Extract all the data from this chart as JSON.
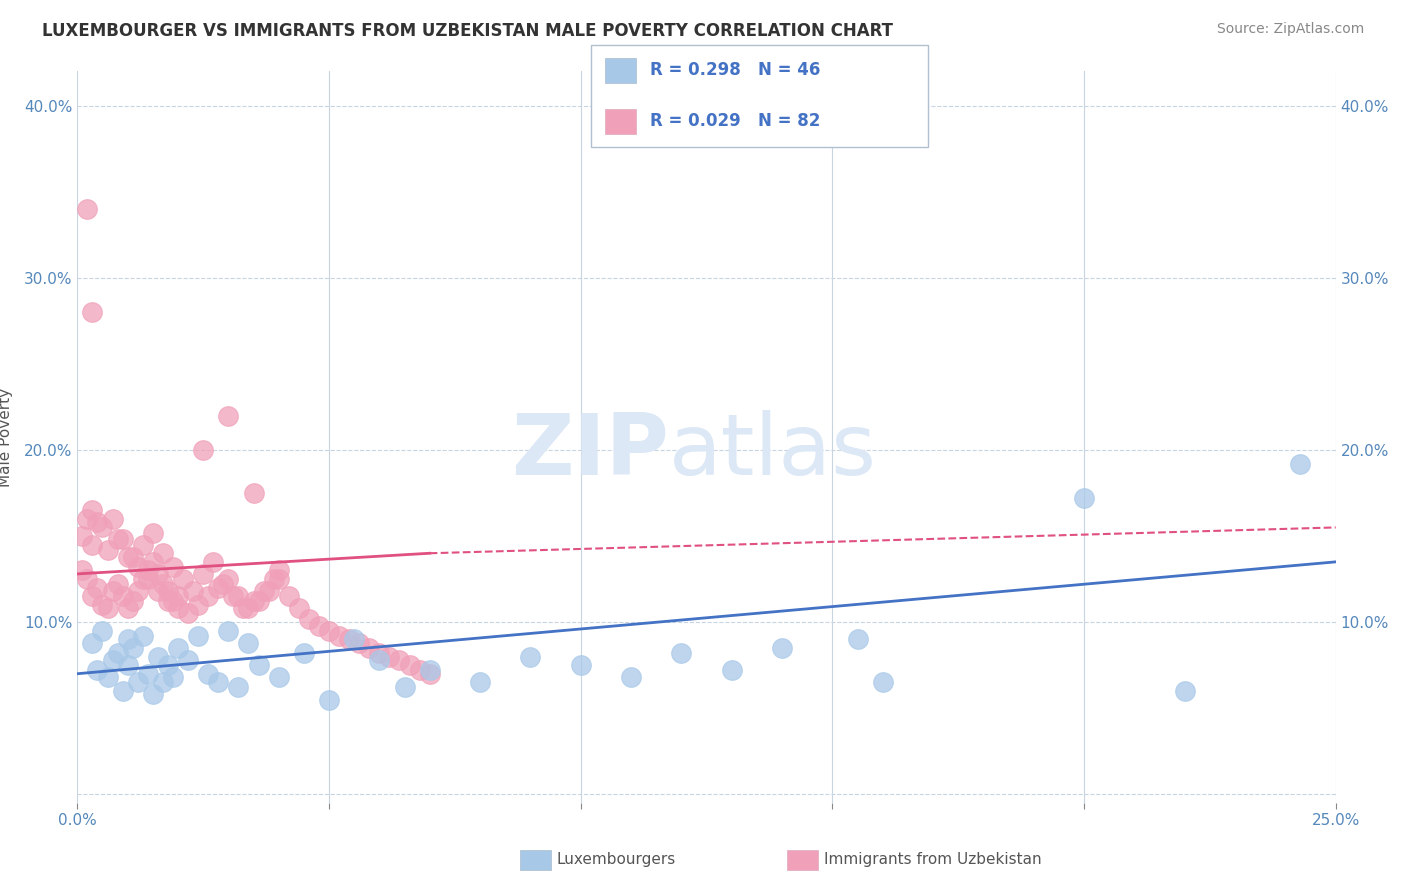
{
  "title": "LUXEMBOURGER VS IMMIGRANTS FROM UZBEKISTAN MALE POVERTY CORRELATION CHART",
  "source": "Source: ZipAtlas.com",
  "ylabel": "Male Poverty",
  "xlim": [
    0.0,
    0.25
  ],
  "ylim": [
    -0.005,
    0.42
  ],
  "xticks": [
    0.0,
    0.05,
    0.1,
    0.15,
    0.2,
    0.25
  ],
  "yticks": [
    0.0,
    0.1,
    0.2,
    0.3,
    0.4
  ],
  "blue_R": 0.298,
  "blue_N": 46,
  "pink_R": 0.029,
  "pink_N": 82,
  "blue_color": "#a8c8e8",
  "pink_color": "#f0a0b8",
  "blue_line_color": "#4472c4",
  "pink_line_color": "#e05080",
  "watermark_color": "#dce8f5",
  "background_color": "#ffffff",
  "grid_color": "#c8d4e0",
  "blue_scatter_x": [
    0.003,
    0.004,
    0.005,
    0.006,
    0.007,
    0.008,
    0.009,
    0.01,
    0.01,
    0.011,
    0.012,
    0.013,
    0.014,
    0.015,
    0.016,
    0.017,
    0.018,
    0.019,
    0.02,
    0.022,
    0.024,
    0.026,
    0.028,
    0.03,
    0.032,
    0.034,
    0.036,
    0.04,
    0.045,
    0.05,
    0.055,
    0.06,
    0.065,
    0.07,
    0.08,
    0.09,
    0.1,
    0.11,
    0.12,
    0.13,
    0.14,
    0.155,
    0.16,
    0.2,
    0.22,
    0.243
  ],
  "blue_scatter_y": [
    0.088,
    0.072,
    0.095,
    0.068,
    0.078,
    0.082,
    0.06,
    0.09,
    0.075,
    0.085,
    0.065,
    0.092,
    0.07,
    0.058,
    0.08,
    0.065,
    0.075,
    0.068,
    0.085,
    0.078,
    0.092,
    0.07,
    0.065,
    0.095,
    0.062,
    0.088,
    0.075,
    0.068,
    0.082,
    0.055,
    0.09,
    0.078,
    0.062,
    0.072,
    0.065,
    0.08,
    0.075,
    0.068,
    0.082,
    0.072,
    0.085,
    0.09,
    0.065,
    0.172,
    0.06,
    0.192
  ],
  "pink_scatter_x": [
    0.001,
    0.002,
    0.003,
    0.004,
    0.005,
    0.006,
    0.007,
    0.008,
    0.009,
    0.01,
    0.011,
    0.012,
    0.013,
    0.014,
    0.015,
    0.016,
    0.017,
    0.018,
    0.019,
    0.02,
    0.003,
    0.005,
    0.007,
    0.009,
    0.011,
    0.013,
    0.015,
    0.017,
    0.019,
    0.021,
    0.023,
    0.025,
    0.027,
    0.029,
    0.031,
    0.033,
    0.035,
    0.037,
    0.039,
    0.04,
    0.001,
    0.002,
    0.003,
    0.004,
    0.006,
    0.008,
    0.01,
    0.012,
    0.014,
    0.016,
    0.018,
    0.02,
    0.022,
    0.024,
    0.026,
    0.028,
    0.03,
    0.032,
    0.034,
    0.036,
    0.038,
    0.04,
    0.042,
    0.044,
    0.046,
    0.048,
    0.05,
    0.052,
    0.054,
    0.056,
    0.058,
    0.06,
    0.062,
    0.064,
    0.066,
    0.068,
    0.07,
    0.025,
    0.03,
    0.035,
    0.002,
    0.003
  ],
  "pink_scatter_y": [
    0.13,
    0.125,
    0.115,
    0.12,
    0.11,
    0.108,
    0.118,
    0.122,
    0.115,
    0.108,
    0.112,
    0.118,
    0.125,
    0.13,
    0.135,
    0.128,
    0.122,
    0.118,
    0.112,
    0.115,
    0.145,
    0.155,
    0.16,
    0.148,
    0.138,
    0.145,
    0.152,
    0.14,
    0.132,
    0.125,
    0.118,
    0.128,
    0.135,
    0.122,
    0.115,
    0.108,
    0.112,
    0.118,
    0.125,
    0.13,
    0.15,
    0.16,
    0.165,
    0.158,
    0.142,
    0.148,
    0.138,
    0.132,
    0.125,
    0.118,
    0.112,
    0.108,
    0.105,
    0.11,
    0.115,
    0.12,
    0.125,
    0.115,
    0.108,
    0.112,
    0.118,
    0.125,
    0.115,
    0.108,
    0.102,
    0.098,
    0.095,
    0.092,
    0.09,
    0.088,
    0.085,
    0.082,
    0.08,
    0.078,
    0.075,
    0.072,
    0.07,
    0.2,
    0.22,
    0.175,
    0.34,
    0.28
  ]
}
